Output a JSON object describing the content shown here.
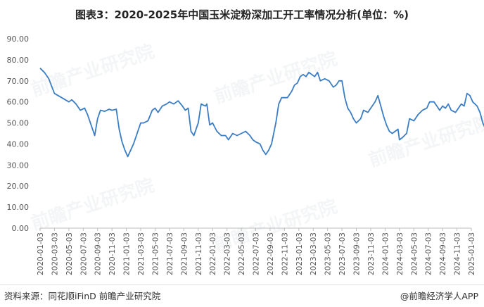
{
  "chart_data": {
    "type": "line",
    "title": "图表3：2020-2025年中国玉米淀粉深加工开工率情况分析(单位：%)",
    "xlabel": "",
    "ylabel": "",
    "ylim": [
      0,
      90
    ],
    "yticks": [
      "0.00",
      "10.00",
      "20.00",
      "30.00",
      "40.00",
      "50.00",
      "60.00",
      "70.00",
      "80.00",
      "90.00"
    ],
    "xticks": [
      "2020-01-03",
      "2020-03-03",
      "2020-05-03",
      "2020-07-03",
      "2020-09-03",
      "2020-11-03",
      "2021-01-03",
      "2021-03-03",
      "2021-05-03",
      "2021-07-03",
      "2021-09-03",
      "2021-11-03",
      "2022-01-03",
      "2022-03-03",
      "2022-05-03",
      "2022-07-03",
      "2022-09-03",
      "2022-11-03",
      "2023-01-03",
      "2023-03-03",
      "2023-05-03",
      "2023-07-03",
      "2023-09-03",
      "2023-11-03",
      "2024-01-03",
      "2024-03-03",
      "2024-05-03",
      "2024-07-03",
      "2024-09-03",
      "2024-11-03",
      "2025-01-03"
    ],
    "grid": false,
    "series": [
      {
        "color": "#3b7dc4",
        "points": [
          [
            0,
            76
          ],
          [
            0.3,
            74
          ],
          [
            0.6,
            71
          ],
          [
            1.0,
            64
          ],
          [
            1.5,
            62
          ],
          [
            2.0,
            60
          ],
          [
            2.2,
            61
          ],
          [
            2.5,
            59
          ],
          [
            2.8,
            56
          ],
          [
            3.1,
            57
          ],
          [
            3.3,
            54
          ],
          [
            3.5,
            50
          ],
          [
            3.8,
            44
          ],
          [
            4.0,
            52
          ],
          [
            4.2,
            56
          ],
          [
            4.5,
            55.5
          ],
          [
            4.8,
            56.5
          ],
          [
            5.0,
            56
          ],
          [
            5.3,
            56.5
          ],
          [
            5.5,
            47
          ],
          [
            5.7,
            41
          ],
          [
            5.9,
            37
          ],
          [
            6.1,
            34
          ],
          [
            6.3,
            37
          ],
          [
            6.5,
            40
          ],
          [
            6.7,
            44
          ],
          [
            7.0,
            50
          ],
          [
            7.2,
            50
          ],
          [
            7.5,
            51
          ],
          [
            7.8,
            56
          ],
          [
            8.0,
            57
          ],
          [
            8.2,
            55
          ],
          [
            8.5,
            58
          ],
          [
            8.8,
            59
          ],
          [
            9.0,
            60
          ],
          [
            9.3,
            59
          ],
          [
            9.6,
            60.5
          ],
          [
            9.9,
            58
          ],
          [
            10.1,
            56
          ],
          [
            10.3,
            57
          ],
          [
            10.5,
            46
          ],
          [
            10.7,
            44
          ],
          [
            11.0,
            50
          ],
          [
            11.2,
            59
          ],
          [
            11.5,
            58
          ],
          [
            11.6,
            59
          ],
          [
            11.8,
            49
          ],
          [
            12.0,
            50
          ],
          [
            12.3,
            46
          ],
          [
            12.6,
            44
          ],
          [
            12.9,
            44
          ],
          [
            13.1,
            42
          ],
          [
            13.4,
            45
          ],
          [
            13.7,
            44
          ],
          [
            14.0,
            45
          ],
          [
            14.3,
            46
          ],
          [
            14.6,
            44
          ],
          [
            14.8,
            42
          ],
          [
            15.0,
            41
          ],
          [
            15.3,
            40
          ],
          [
            15.5,
            37
          ],
          [
            15.7,
            35
          ],
          [
            15.9,
            37
          ],
          [
            16.1,
            40
          ],
          [
            16.4,
            50
          ],
          [
            16.6,
            59
          ],
          [
            16.8,
            62
          ],
          [
            17.2,
            62
          ],
          [
            17.5,
            65
          ],
          [
            17.7,
            68
          ],
          [
            17.9,
            69
          ],
          [
            18.1,
            72
          ],
          [
            18.3,
            73
          ],
          [
            18.5,
            72
          ],
          [
            18.7,
            74
          ],
          [
            18.9,
            73
          ],
          [
            19.1,
            72
          ],
          [
            19.3,
            74
          ],
          [
            19.5,
            70
          ],
          [
            19.8,
            71
          ],
          [
            20.1,
            70
          ],
          [
            20.4,
            67
          ],
          [
            20.6,
            68
          ],
          [
            20.8,
            70
          ],
          [
            21.0,
            70
          ],
          [
            21.2,
            62
          ],
          [
            21.4,
            57
          ],
          [
            21.6,
            55
          ],
          [
            21.8,
            52
          ],
          [
            22.0,
            50
          ],
          [
            22.3,
            52
          ],
          [
            22.5,
            56
          ],
          [
            22.8,
            55
          ],
          [
            23.0,
            57
          ],
          [
            23.3,
            60
          ],
          [
            23.5,
            63
          ],
          [
            23.7,
            58
          ],
          [
            23.9,
            53
          ],
          [
            24.1,
            49
          ],
          [
            24.3,
            46
          ],
          [
            24.5,
            45
          ],
          [
            24.7,
            46
          ],
          [
            24.9,
            47
          ],
          [
            25.0,
            42
          ],
          [
            25.2,
            43
          ],
          [
            25.5,
            45
          ],
          [
            25.7,
            52
          ],
          [
            26.0,
            51
          ],
          [
            26.3,
            54
          ],
          [
            26.6,
            56
          ],
          [
            26.9,
            57
          ],
          [
            27.1,
            60
          ],
          [
            27.4,
            60
          ],
          [
            27.6,
            58
          ],
          [
            27.8,
            56
          ],
          [
            28.0,
            58
          ],
          [
            28.2,
            57
          ],
          [
            28.4,
            59
          ],
          [
            28.6,
            56
          ],
          [
            28.9,
            55
          ],
          [
            29.1,
            57
          ],
          [
            29.3,
            59
          ],
          [
            29.5,
            58
          ],
          [
            29.7,
            64
          ],
          [
            29.9,
            63
          ],
          [
            30.1,
            60
          ],
          [
            30.4,
            58
          ],
          [
            30.6,
            55
          ],
          [
            30.8,
            50
          ],
          [
            31.0,
            47
          ],
          [
            31.2,
            48
          ],
          [
            31.5,
            51
          ],
          [
            31.8,
            52
          ],
          [
            32.0,
            53
          ],
          [
            32.3,
            51
          ],
          [
            32.5,
            48
          ],
          [
            32.7,
            49
          ],
          [
            32.9,
            47
          ],
          [
            33.1,
            45
          ],
          [
            33.3,
            43
          ],
          [
            33.5,
            42.5
          ],
          [
            33.7,
            43
          ],
          [
            34.0,
            47
          ],
          [
            34.3,
            50
          ],
          [
            34.6,
            53
          ],
          [
            34.8,
            57
          ],
          [
            35.0,
            52
          ],
          [
            35.2,
            50
          ],
          [
            35.5,
            60
          ],
          [
            35.8,
            62
          ],
          [
            36.1,
            64
          ],
          [
            36.3,
            67
          ],
          [
            36.5,
            69
          ],
          [
            36.8,
            70.5
          ],
          [
            37.0,
            71
          ],
          [
            37.2,
            70
          ],
          [
            37.5,
            70
          ],
          [
            37.7,
            69
          ],
          [
            38.0,
            70
          ],
          [
            38.3,
            69
          ],
          [
            38.5,
            68
          ],
          [
            38.7,
            65
          ],
          [
            38.9,
            64
          ],
          [
            39.1,
            66
          ],
          [
            39.3,
            65
          ],
          [
            39.5,
            66
          ],
          [
            39.7,
            65
          ],
          [
            39.9,
            66
          ],
          [
            40.1,
            67
          ],
          [
            40.3,
            66
          ],
          [
            40.5,
            65
          ],
          [
            40.7,
            64
          ],
          [
            40.9,
            62
          ],
          [
            41.1,
            58
          ],
          [
            41.3,
            55
          ],
          [
            41.5,
            53
          ],
          [
            41.7,
            56
          ],
          [
            42.0,
            58
          ],
          [
            42.2,
            56
          ],
          [
            42.4,
            54
          ],
          [
            42.6,
            52
          ],
          [
            42.8,
            53
          ],
          [
            43.0,
            50
          ],
          [
            43.2,
            48
          ],
          [
            43.4,
            45
          ],
          [
            43.7,
            46
          ],
          [
            43.9,
            49
          ],
          [
            44.1,
            50
          ],
          [
            44.4,
            52
          ],
          [
            44.7,
            54
          ],
          [
            44.9,
            55
          ],
          [
            45.1,
            57
          ],
          [
            45.3,
            60
          ],
          [
            45.5,
            59
          ],
          [
            45.7,
            56
          ],
          [
            45.9,
            54
          ],
          [
            46.1,
            53
          ],
          [
            46.3,
            55
          ],
          [
            46.5,
            57
          ],
          [
            46.7,
            58
          ],
          [
            46.9,
            58
          ],
          [
            47.1,
            60
          ],
          [
            47.3,
            60
          ]
        ]
      }
    ]
  },
  "footer": {
    "source": "资料来源：同花顺iFinD 前瞻产业研究院",
    "brand": "@前瞻经济学人APP"
  }
}
